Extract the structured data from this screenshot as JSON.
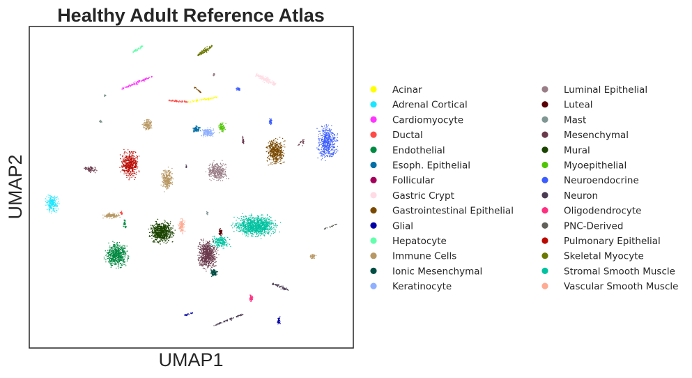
{
  "chart_data": {
    "type": "scatter",
    "title": "Healthy Adult Reference Atlas",
    "xlabel": "UMAP1",
    "ylabel": "UMAP2",
    "xlim": [
      0,
      100
    ],
    "ylim": [
      0,
      100
    ],
    "grid": false,
    "ticks": false,
    "legend_placement": "right",
    "legend": [
      {
        "name": "Acinar",
        "color": "#ffff00"
      },
      {
        "name": "Adrenal Cortical",
        "color": "#1ce6ff"
      },
      {
        "name": "Cardiomyocyte",
        "color": "#ff34ff"
      },
      {
        "name": "Ductal",
        "color": "#ff4a46"
      },
      {
        "name": "Endothelial",
        "color": "#008941"
      },
      {
        "name": "Esoph. Epithelial",
        "color": "#006fa6"
      },
      {
        "name": "Follicular",
        "color": "#a30059"
      },
      {
        "name": "Gastric Crypt",
        "color": "#ffdbe5"
      },
      {
        "name": "Gastrointestinal Epithelial",
        "color": "#7a4900"
      },
      {
        "name": "Glial",
        "color": "#0000a6"
      },
      {
        "name": "Hepatocyte",
        "color": "#63ffac"
      },
      {
        "name": "Immune Cells",
        "color": "#b79762"
      },
      {
        "name": "Ionic Mesenchymal",
        "color": "#004d43"
      },
      {
        "name": "Keratinocyte",
        "color": "#8fb0ff"
      },
      {
        "name": "Luminal Epithelial",
        "color": "#997d87"
      },
      {
        "name": "Luteal",
        "color": "#5a0007"
      },
      {
        "name": "Mast",
        "color": "#809693"
      },
      {
        "name": "Mesenchymal",
        "color": "#6a3a4c"
      },
      {
        "name": "Mural",
        "color": "#1b4400"
      },
      {
        "name": "Myoepithelial",
        "color": "#4fc601"
      },
      {
        "name": "Neuroendocrine",
        "color": "#3b5dff"
      },
      {
        "name": "Neuron",
        "color": "#4a3b53"
      },
      {
        "name": "Oligodendrocyte",
        "color": "#ff2f80"
      },
      {
        "name": "PNC-Derived",
        "color": "#61615a"
      },
      {
        "name": "Pulmonary Epithelial",
        "color": "#ba0900"
      },
      {
        "name": "Skeletal Myocyte",
        "color": "#6b7900"
      },
      {
        "name": "Stromal Smooth Muscle",
        "color": "#00c2a0"
      },
      {
        "name": "Vascular Smooth Muscle",
        "color": "#ffaa92"
      }
    ],
    "clusters": [
      {
        "label": "Adrenal Cortical",
        "shape": "blob",
        "cx": 7,
        "cy": 45,
        "rx": 2.5,
        "ry": 3.2,
        "n": 220
      },
      {
        "label": "Pulmonary Epithelial",
        "shape": "blob",
        "cx": 31,
        "cy": 57,
        "rx": 3.5,
        "ry": 5.5,
        "n": 450
      },
      {
        "label": "Neuroendocrine",
        "shape": "blob",
        "cx": 92,
        "cy": 64,
        "rx": 3.8,
        "ry": 6.8,
        "n": 520
      },
      {
        "label": "Gastrointestinal Epithelial",
        "shape": "blob",
        "cx": 76,
        "cy": 61,
        "rx": 3.5,
        "ry": 5.2,
        "n": 480
      },
      {
        "label": "Luminal Epithelial",
        "shape": "blob",
        "cx": 58,
        "cy": 55,
        "rx": 4,
        "ry": 3.8,
        "n": 380
      },
      {
        "label": "Immune Cells",
        "shape": "blob",
        "cx": 42.5,
        "cy": 52.5,
        "rx": 2.2,
        "ry": 4.2,
        "n": 260
      },
      {
        "label": "Mural",
        "shape": "blob",
        "cx": 41,
        "cy": 36,
        "rx": 4.6,
        "ry": 4.2,
        "n": 760
      },
      {
        "label": "Vascular Smooth Muscle",
        "shape": "blob",
        "cx": 47,
        "cy": 38,
        "rx": 1.3,
        "ry": 2.8,
        "n": 110
      },
      {
        "label": "Endothelial",
        "shape": "blob",
        "cx": 27,
        "cy": 29,
        "rx": 4.5,
        "ry": 4.8,
        "n": 640
      },
      {
        "label": "Stromal Smooth Muscle",
        "shape": "blob",
        "cx": 70,
        "cy": 38,
        "rx": 8,
        "ry": 4.2,
        "n": 1100
      },
      {
        "label": "Stromal Smooth Muscle",
        "shape": "blob",
        "cx": 59,
        "cy": 33,
        "rx": 3.5,
        "ry": 2.5,
        "n": 200
      },
      {
        "label": "Mesenchymal",
        "shape": "blob",
        "cx": 55,
        "cy": 29,
        "rx": 3.8,
        "ry": 5.5,
        "n": 700
      },
      {
        "label": "Ionic Mesenchymal",
        "shape": "blob",
        "cx": 57,
        "cy": 23.5,
        "rx": 1.5,
        "ry": 1.5,
        "n": 100
      },
      {
        "label": "Luteal",
        "shape": "blob",
        "cx": 59,
        "cy": 36,
        "rx": 0.7,
        "ry": 1.4,
        "n": 60
      },
      {
        "label": "Immune Cells",
        "shape": "blob",
        "cx": 36.5,
        "cy": 69.5,
        "rx": 1.8,
        "ry": 2.4,
        "n": 130
      },
      {
        "label": "Immune Cells",
        "shape": "blob",
        "cx": 25.5,
        "cy": 41.2,
        "rx": 3.5,
        "ry": 1.1,
        "n": 120
      },
      {
        "label": "Ductal",
        "shape": "blob",
        "cx": 28.5,
        "cy": 42,
        "rx": 0.6,
        "ry": 0.7,
        "n": 25
      },
      {
        "label": "Endothelial",
        "shape": "blob",
        "cx": 29.5,
        "cy": 38.5,
        "rx": 0.6,
        "ry": 1.8,
        "n": 30
      },
      {
        "label": "Esoph. Epithelial",
        "shape": "blob",
        "cx": 51.5,
        "cy": 68.2,
        "rx": 1.5,
        "ry": 1.3,
        "n": 90
      },
      {
        "label": "Keratinocyte",
        "shape": "blob",
        "cx": 55,
        "cy": 67,
        "rx": 2.5,
        "ry": 1.8,
        "n": 170
      },
      {
        "label": "Myoepithelial",
        "shape": "blob",
        "cx": 59.5,
        "cy": 68.5,
        "rx": 1.4,
        "ry": 2,
        "n": 80
      },
      {
        "label": "Immune Cells",
        "shape": "blob",
        "cx": 87.5,
        "cy": 28.5,
        "rx": 1.2,
        "ry": 0.9,
        "n": 45
      },
      {
        "label": "Mesenchymal",
        "shape": "blob",
        "cx": 19,
        "cy": 55.5,
        "rx": 2.7,
        "ry": 1.4,
        "n": 70
      },
      {
        "label": "Oligodendrocyte",
        "shape": "blob",
        "cx": 68.5,
        "cy": 15.5,
        "rx": 0.7,
        "ry": 1.5,
        "n": 50
      },
      {
        "label": "Glial",
        "shape": "blob",
        "cx": 77,
        "cy": 8.5,
        "rx": 0.6,
        "ry": 1.5,
        "n": 45
      },
      {
        "label": "Neuroendocrine",
        "shape": "blob",
        "cx": 64.5,
        "cy": 80.5,
        "rx": 0.9,
        "ry": 0.9,
        "n": 30
      },
      {
        "label": "Neuroendocrine",
        "shape": "blob",
        "cx": 74.5,
        "cy": 70.5,
        "rx": 0.7,
        "ry": 1.5,
        "n": 40
      },
      {
        "label": "Mast",
        "shape": "blob",
        "cx": 22,
        "cy": 70.5,
        "rx": 0.7,
        "ry": 0.6,
        "n": 15
      },
      {
        "label": "Mast",
        "shape": "blob",
        "cx": 55,
        "cy": 42,
        "rx": 0.4,
        "ry": 0.8,
        "n": 15
      },
      {
        "label": "Luminal Epithelial",
        "shape": "blob",
        "cx": 57,
        "cy": 85,
        "rx": 0.4,
        "ry": 0.8,
        "n": 12
      },
      {
        "label": "Mesenchymal",
        "shape": "blob",
        "cx": 66,
        "cy": 64.5,
        "rx": 0.4,
        "ry": 1.6,
        "n": 30
      },
      {
        "label": "Mesenchymal",
        "shape": "blob",
        "cx": 84.5,
        "cy": 64,
        "rx": 0.4,
        "ry": 1.4,
        "n": 20
      },
      {
        "label": "Neuron",
        "shape": "blob",
        "cx": 48.5,
        "cy": 56.5,
        "rx": 0.3,
        "ry": 0.8,
        "n": 10
      },
      {
        "label": "Mast",
        "shape": "blob",
        "cx": 23.5,
        "cy": 78.5,
        "rx": 0.5,
        "ry": 0.5,
        "n": 10
      },
      {
        "label": "Skeletal Myocyte",
        "shape": "line",
        "x1": 52,
        "y1": 91,
        "x2": 56.5,
        "y2": 94,
        "w": 0.9,
        "n": 130
      },
      {
        "label": "Hepatocyte",
        "shape": "line",
        "x1": 32,
        "y1": 92,
        "x2": 35,
        "y2": 94,
        "w": 0.5,
        "n": 45
      },
      {
        "label": "Cardiomyocyte",
        "shape": "line",
        "x1": 28.5,
        "y1": 80.5,
        "x2": 38,
        "y2": 84.5,
        "w": 0.6,
        "n": 110
      },
      {
        "label": "Gastric Crypt",
        "shape": "line",
        "x1": 70,
        "y1": 85,
        "x2": 76,
        "y2": 82,
        "w": 1.3,
        "n": 140
      },
      {
        "label": "Ductal",
        "shape": "line",
        "x1": 43,
        "y1": 77,
        "x2": 49,
        "y2": 76.5,
        "w": 0.5,
        "n": 55
      },
      {
        "label": "Acinar",
        "shape": "line",
        "x1": 49,
        "y1": 76.5,
        "x2": 58,
        "y2": 78,
        "w": 0.5,
        "n": 65
      },
      {
        "label": "Gastrointestinal Epithelial",
        "shape": "line",
        "x1": 51,
        "y1": 81,
        "x2": 53,
        "y2": 79.5,
        "w": 0.5,
        "n": 25
      },
      {
        "label": "Neuron",
        "shape": "line",
        "x1": 57,
        "y1": 7,
        "x2": 66,
        "y2": 10.5,
        "w": 0.5,
        "n": 70
      },
      {
        "label": "Neuron",
        "shape": "line",
        "x1": 75,
        "y1": 20,
        "x2": 80,
        "y2": 18,
        "w": 0.8,
        "n": 60
      },
      {
        "label": "Glial",
        "shape": "line",
        "x1": 47.5,
        "y1": 10,
        "x2": 50.5,
        "y2": 11,
        "w": 0.4,
        "n": 25
      },
      {
        "label": "PNC-Derived",
        "shape": "line",
        "x1": 91,
        "y1": 37,
        "x2": 95,
        "y2": 38.5,
        "w": 0.35,
        "n": 25
      },
      {
        "label": "Mesenchymal",
        "shape": "line",
        "x1": 83,
        "y1": 63,
        "x2": 84.5,
        "y2": 65,
        "w": 0.3,
        "n": 10
      }
    ]
  }
}
